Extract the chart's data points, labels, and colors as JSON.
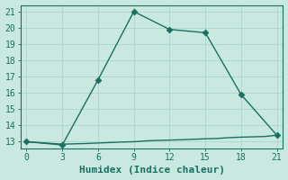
{
  "xlabel": "Humidex (Indice chaleur)",
  "line1_x": [
    0,
    3,
    6,
    9,
    12,
    15,
    18,
    21
  ],
  "line1_y": [
    13.0,
    12.8,
    16.8,
    21.0,
    19.9,
    19.7,
    15.9,
    13.4
  ],
  "line2_x": [
    0,
    1,
    2,
    3,
    4,
    5,
    6,
    7,
    8,
    9,
    10,
    11,
    12,
    13,
    14,
    15,
    16,
    17,
    18,
    19,
    20,
    21
  ],
  "line2_y": [
    13.0,
    12.95,
    12.9,
    12.85,
    12.87,
    12.89,
    12.92,
    12.95,
    12.98,
    13.0,
    13.05,
    13.08,
    13.1,
    13.12,
    13.15,
    13.18,
    13.2,
    13.25,
    13.28,
    13.3,
    13.32,
    13.4
  ],
  "line_color": "#1a7060",
  "bg_color": "#c8e8e0",
  "grid_color": "#b0d8d0",
  "xlim": [
    -0.5,
    21.5
  ],
  "ylim": [
    12.6,
    21.4
  ],
  "xticks": [
    0,
    3,
    6,
    9,
    12,
    15,
    18,
    21
  ],
  "yticks": [
    13,
    14,
    15,
    16,
    17,
    18,
    19,
    20,
    21
  ],
  "marker": "D",
  "marker_size": 3.5,
  "linewidth": 1.0,
  "tick_fontsize": 7,
  "xlabel_fontsize": 8
}
